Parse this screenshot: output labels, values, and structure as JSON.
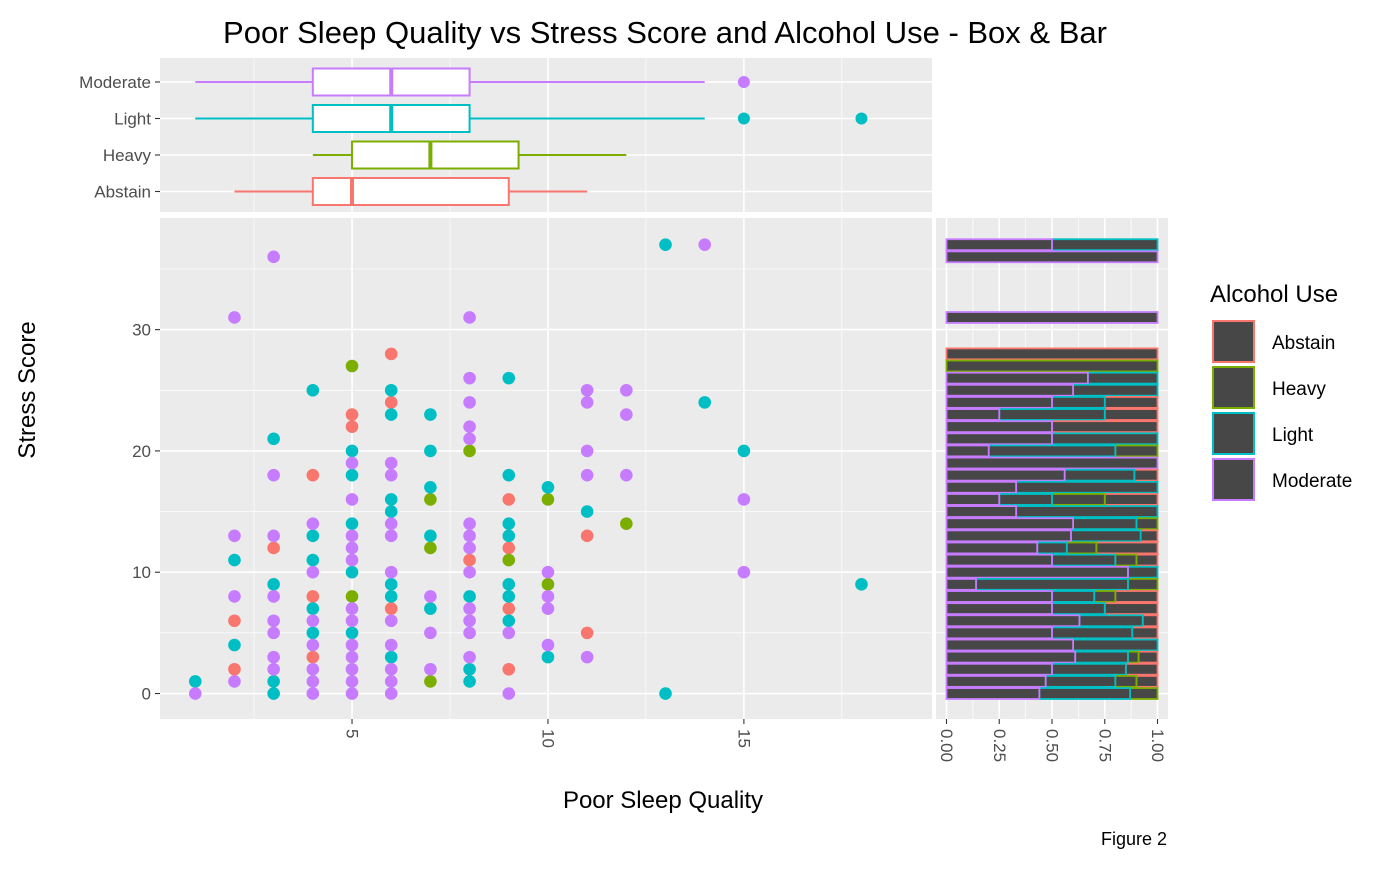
{
  "title": "Poor Sleep Quality vs Stress Score and Alcohol Use - Box & Bar",
  "caption": "Figure 2",
  "colors": {
    "Abstain": "#f8766d",
    "Heavy": "#7cae00",
    "Light": "#00bfc4",
    "Moderate": "#c77cff",
    "bar_fill": "#474747"
  },
  "chart_data": [
    {
      "type": "scatter",
      "xlabel": "Poor Sleep Quality",
      "ylabel": "Stress Score",
      "xlim": [
        0.1,
        19.8
      ],
      "ylim": [
        -2.1,
        39.2
      ],
      "x_ticks": [
        5,
        10,
        15
      ],
      "y_ticks": [
        0,
        10,
        20,
        30
      ],
      "series": [
        {
          "name": "Abstain",
          "points": [
            [
              2,
              2
            ],
            [
              2,
              6
            ],
            [
              3,
              12
            ],
            [
              4,
              3
            ],
            [
              4,
              8
            ],
            [
              4,
              18
            ],
            [
              5,
              22
            ],
            [
              5,
              23
            ],
            [
              6,
              7
            ],
            [
              6,
              24
            ],
            [
              6,
              28
            ],
            [
              8,
              11
            ],
            [
              9,
              2
            ],
            [
              9,
              7
            ],
            [
              9,
              12
            ],
            [
              9,
              16
            ],
            [
              11,
              5
            ],
            [
              11,
              13
            ]
          ]
        },
        {
          "name": "Heavy",
          "points": [
            [
              5,
              8
            ],
            [
              5,
              27
            ],
            [
              7,
              1
            ],
            [
              7,
              12
            ],
            [
              7,
              16
            ],
            [
              8,
              20
            ],
            [
              9,
              11
            ],
            [
              10,
              9
            ],
            [
              10,
              16
            ],
            [
              12,
              14
            ]
          ]
        },
        {
          "name": "Light",
          "points": [
            [
              1,
              1
            ],
            [
              2,
              4
            ],
            [
              2,
              11
            ],
            [
              3,
              0
            ],
            [
              3,
              1
            ],
            [
              3,
              9
            ],
            [
              3,
              21
            ],
            [
              4,
              5
            ],
            [
              4,
              7
            ],
            [
              4,
              11
            ],
            [
              4,
              13
            ],
            [
              4,
              25
            ],
            [
              5,
              5
            ],
            [
              5,
              10
            ],
            [
              5,
              14
            ],
            [
              5,
              18
            ],
            [
              5,
              20
            ],
            [
              6,
              3
            ],
            [
              6,
              8
            ],
            [
              6,
              9
            ],
            [
              6,
              15
            ],
            [
              6,
              16
            ],
            [
              6,
              23
            ],
            [
              6,
              25
            ],
            [
              7,
              7
            ],
            [
              7,
              13
            ],
            [
              7,
              17
            ],
            [
              7,
              20
            ],
            [
              7,
              23
            ],
            [
              8,
              1
            ],
            [
              8,
              2
            ],
            [
              8,
              8
            ],
            [
              9,
              6
            ],
            [
              9,
              8
            ],
            [
              9,
              9
            ],
            [
              9,
              13
            ],
            [
              9,
              14
            ],
            [
              9,
              18
            ],
            [
              9,
              26
            ],
            [
              10,
              3
            ],
            [
              10,
              17
            ],
            [
              11,
              15
            ],
            [
              13,
              0
            ],
            [
              13,
              37
            ],
            [
              14,
              24
            ],
            [
              15,
              20
            ],
            [
              18,
              9
            ]
          ]
        },
        {
          "name": "Moderate",
          "points": [
            [
              1,
              0
            ],
            [
              2,
              1
            ],
            [
              2,
              8
            ],
            [
              2,
              13
            ],
            [
              2,
              31
            ],
            [
              3,
              2
            ],
            [
              3,
              3
            ],
            [
              3,
              5
            ],
            [
              3,
              6
            ],
            [
              3,
              8
            ],
            [
              3,
              13
            ],
            [
              3,
              18
            ],
            [
              3,
              36
            ],
            [
              4,
              0
            ],
            [
              4,
              1
            ],
            [
              4,
              2
            ],
            [
              4,
              4
            ],
            [
              4,
              6
            ],
            [
              4,
              10
            ],
            [
              4,
              14
            ],
            [
              5,
              0
            ],
            [
              5,
              1
            ],
            [
              5,
              2
            ],
            [
              5,
              3
            ],
            [
              5,
              4
            ],
            [
              5,
              6
            ],
            [
              5,
              7
            ],
            [
              5,
              11
            ],
            [
              5,
              12
            ],
            [
              5,
              13
            ],
            [
              5,
              16
            ],
            [
              5,
              19
            ],
            [
              6,
              0
            ],
            [
              6,
              1
            ],
            [
              6,
              2
            ],
            [
              6,
              4
            ],
            [
              6,
              6
            ],
            [
              6,
              10
            ],
            [
              6,
              13
            ],
            [
              6,
              14
            ],
            [
              6,
              18
            ],
            [
              6,
              19
            ],
            [
              7,
              2
            ],
            [
              7,
              5
            ],
            [
              7,
              8
            ],
            [
              8,
              3
            ],
            [
              8,
              5
            ],
            [
              8,
              6
            ],
            [
              8,
              7
            ],
            [
              8,
              10
            ],
            [
              8,
              12
            ],
            [
              8,
              13
            ],
            [
              8,
              14
            ],
            [
              8,
              21
            ],
            [
              8,
              22
            ],
            [
              8,
              24
            ],
            [
              8,
              26
            ],
            [
              8,
              31
            ],
            [
              9,
              0
            ],
            [
              9,
              5
            ],
            [
              10,
              4
            ],
            [
              10,
              7
            ],
            [
              10,
              8
            ],
            [
              10,
              10
            ],
            [
              11,
              3
            ],
            [
              11,
              18
            ],
            [
              11,
              20
            ],
            [
              11,
              24
            ],
            [
              11,
              25
            ],
            [
              12,
              18
            ],
            [
              12,
              23
            ],
            [
              12,
              25
            ],
            [
              14,
              37
            ],
            [
              15,
              10
            ],
            [
              15,
              16
            ]
          ]
        }
      ]
    },
    {
      "type": "box",
      "orientation": "horizontal",
      "categories": [
        "Abstain",
        "Heavy",
        "Light",
        "Moderate"
      ],
      "boxes": [
        {
          "name": "Abstain",
          "whisker_low": 2,
          "q1": 4,
          "median": 5,
          "q3": 9,
          "whisker_high": 11,
          "outliers": []
        },
        {
          "name": "Heavy",
          "whisker_low": 4,
          "q1": 5,
          "median": 7,
          "q3": 9.25,
          "whisker_high": 12,
          "outliers": []
        },
        {
          "name": "Light",
          "whisker_low": 1,
          "q1": 4,
          "median": 6,
          "q3": 8,
          "whisker_high": 14,
          "outliers": [
            15,
            18
          ]
        },
        {
          "name": "Moderate",
          "whisker_low": 1,
          "q1": 4,
          "median": 6,
          "q3": 8,
          "whisker_high": 14,
          "outliers": [
            15
          ]
        }
      ]
    },
    {
      "type": "bar",
      "orientation": "horizontal",
      "position": "fill",
      "xlim": [
        0,
        1
      ],
      "x_ticks": [
        "0.00",
        "0.25",
        "0.50",
        "0.75",
        "1.00"
      ],
      "rows": [
        {
          "y": 37,
          "Abstain": 0,
          "Heavy": 0,
          "Light": 0.5,
          "Moderate": 0.5
        },
        {
          "y": 36,
          "Abstain": 0,
          "Heavy": 0,
          "Light": 0,
          "Moderate": 1
        },
        {
          "y": 31,
          "Abstain": 0,
          "Heavy": 0,
          "Light": 0,
          "Moderate": 1
        },
        {
          "y": 28,
          "Abstain": 1,
          "Heavy": 0,
          "Light": 0,
          "Moderate": 0
        },
        {
          "y": 27,
          "Abstain": 0,
          "Heavy": 1,
          "Light": 0,
          "Moderate": 0
        },
        {
          "y": 26,
          "Abstain": 0,
          "Heavy": 0,
          "Light": 0.33,
          "Moderate": 0.67
        },
        {
          "y": 25,
          "Abstain": 0,
          "Heavy": 0,
          "Light": 0.4,
          "Moderate": 0.6
        },
        {
          "y": 24,
          "Abstain": 0.25,
          "Heavy": 0,
          "Light": 0.25,
          "Moderate": 0.5
        },
        {
          "y": 23,
          "Abstain": 0.25,
          "Heavy": 0,
          "Light": 0.5,
          "Moderate": 0.25
        },
        {
          "y": 22,
          "Abstain": 0.5,
          "Heavy": 0,
          "Light": 0,
          "Moderate": 0.5
        },
        {
          "y": 21,
          "Abstain": 0,
          "Heavy": 0,
          "Light": 0.5,
          "Moderate": 0.5
        },
        {
          "y": 20,
          "Abstain": 0,
          "Heavy": 0.2,
          "Light": 0.6,
          "Moderate": 0.2
        },
        {
          "y": 19,
          "Abstain": 0,
          "Heavy": 0,
          "Light": 0,
          "Moderate": 1
        },
        {
          "y": 18,
          "Abstain": 0.11,
          "Heavy": 0,
          "Light": 0.33,
          "Moderate": 0.56
        },
        {
          "y": 17,
          "Abstain": 0,
          "Heavy": 0,
          "Light": 0.67,
          "Moderate": 0.33
        },
        {
          "y": 16,
          "Abstain": 0.25,
          "Heavy": 0.25,
          "Light": 0.25,
          "Moderate": 0.25
        },
        {
          "y": 15,
          "Abstain": 0,
          "Heavy": 0,
          "Light": 0.67,
          "Moderate": 0.33
        },
        {
          "y": 14,
          "Abstain": 0,
          "Heavy": 0.1,
          "Light": 0.3,
          "Moderate": 0.6
        },
        {
          "y": 13,
          "Abstain": 0.08,
          "Heavy": 0,
          "Light": 0.33,
          "Moderate": 0.59
        },
        {
          "y": 12,
          "Abstain": 0.29,
          "Heavy": 0.14,
          "Light": 0.14,
          "Moderate": 0.43
        },
        {
          "y": 11,
          "Abstain": 0.1,
          "Heavy": 0.1,
          "Light": 0.3,
          "Moderate": 0.5
        },
        {
          "y": 10,
          "Abstain": 0,
          "Heavy": 0,
          "Light": 0.14,
          "Moderate": 0.86
        },
        {
          "y": 9,
          "Abstain": 0,
          "Heavy": 0.14,
          "Light": 0.72,
          "Moderate": 0.14
        },
        {
          "y": 8,
          "Abstain": 0.2,
          "Heavy": 0.1,
          "Light": 0.2,
          "Moderate": 0.5
        },
        {
          "y": 7,
          "Abstain": 0.25,
          "Heavy": 0,
          "Light": 0.25,
          "Moderate": 0.5
        },
        {
          "y": 6,
          "Abstain": 0.07,
          "Heavy": 0,
          "Light": 0.3,
          "Moderate": 0.63
        },
        {
          "y": 5,
          "Abstain": 0.12,
          "Heavy": 0,
          "Light": 0.38,
          "Moderate": 0.5
        },
        {
          "y": 4,
          "Abstain": 0,
          "Heavy": 0,
          "Light": 0.4,
          "Moderate": 0.6
        },
        {
          "y": 3,
          "Abstain": 0.09,
          "Heavy": 0.05,
          "Light": 0.25,
          "Moderate": 0.61
        },
        {
          "y": 2,
          "Abstain": 0.15,
          "Heavy": 0,
          "Light": 0.35,
          "Moderate": 0.5
        },
        {
          "y": 1,
          "Abstain": 0.1,
          "Heavy": 0.1,
          "Light": 0.33,
          "Moderate": 0.47
        },
        {
          "y": 0,
          "Abstain": 0,
          "Heavy": 0.13,
          "Light": 0.43,
          "Moderate": 0.44
        }
      ]
    }
  ],
  "legend": {
    "title": "Alcohol Use",
    "position": "right",
    "entries": [
      "Abstain",
      "Heavy",
      "Light",
      "Moderate"
    ]
  }
}
